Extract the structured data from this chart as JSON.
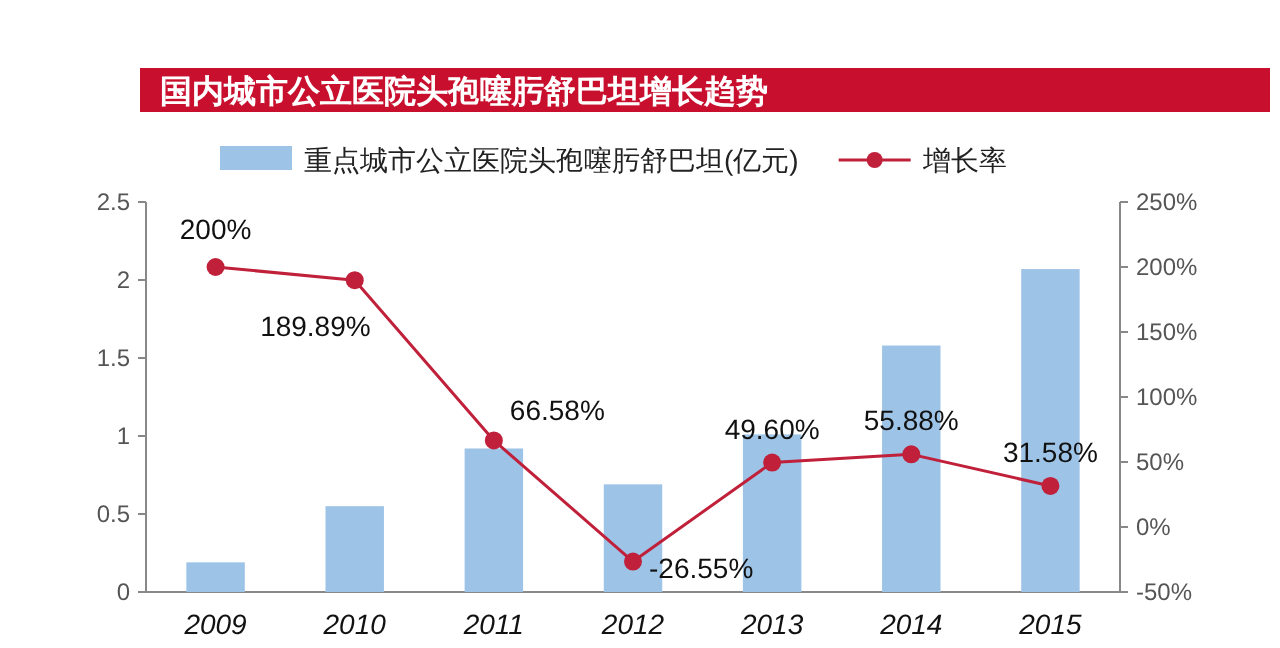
{
  "chart_data": {
    "type": "bar",
    "title": "国内城市公立医院头孢噻肟舒巴坦增长趋势",
    "categories": [
      "2009",
      "2010",
      "2011",
      "2012",
      "2013",
      "2014",
      "2015"
    ],
    "series": [
      {
        "name": "重点城市公立医院头孢噻肟舒巴坦(亿元)",
        "color": "#9dc3e6",
        "values": [
          0.19,
          0.55,
          0.92,
          0.69,
          1.01,
          1.58,
          2.07
        ]
      },
      {
        "name": "增长率",
        "type": "line",
        "axis": "y2",
        "color": "#c0203a",
        "marker": "circle",
        "values": [
          200,
          189.89,
          66.58,
          -26.55,
          49.6,
          55.88,
          31.58
        ],
        "value_labels": [
          "200%",
          "189.89%",
          "66.58%",
          "-26.55%",
          "49.60%",
          "55.88%",
          "31.58%"
        ]
      }
    ],
    "ylim": [
      0,
      2.5
    ],
    "yticks": [
      0,
      0.5,
      1,
      1.5,
      2,
      2.5
    ],
    "y2lim": [
      -50,
      250
    ],
    "y2ticks": [
      {
        "value": -50,
        "label": "-50%"
      },
      {
        "value": 0,
        "label": "0%"
      },
      {
        "value": 50,
        "label": "50%"
      },
      {
        "value": 100,
        "label": "100%"
      },
      {
        "value": 150,
        "label": "150%"
      },
      {
        "value": 200,
        "label": "200%"
      },
      {
        "value": 250,
        "label": "250%"
      }
    ],
    "legend": "top",
    "grid": false
  }
}
